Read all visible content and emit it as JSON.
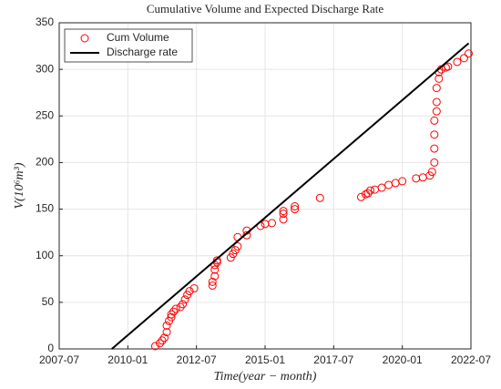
{
  "chart_data": {
    "type": "scatter",
    "title": "Cumulative Volume and Expected Discharge Rate",
    "xlabel": "Time(year − month)",
    "ylabel": "V(10⁶m³)",
    "xlim": [
      "2007-07",
      "2022-07"
    ],
    "xticks": [
      "2007-07",
      "2010-01",
      "2012-07",
      "2015-01",
      "2017-07",
      "2020-01",
      "2022-07"
    ],
    "ylim": [
      0,
      350
    ],
    "yticks": [
      0,
      50,
      100,
      150,
      200,
      250,
      300,
      350
    ],
    "grid": true,
    "legend": "upper left",
    "series": [
      {
        "name": "Cum Volume",
        "color": "#ff0000",
        "mode": "markers",
        "x": [
          "2011-01",
          "2011-03",
          "2011-04",
          "2011-05",
          "2011-06",
          "2011-06",
          "2011-07",
          "2011-08",
          "2011-08",
          "2011-09",
          "2011-10",
          "2011-12",
          "2012-01",
          "2012-02",
          "2012-03",
          "2012-04",
          "2012-06",
          "2013-02",
          "2013-02",
          "2013-03",
          "2013-03",
          "2013-03",
          "2013-04",
          "2013-04",
          "2013-10",
          "2013-11",
          "2013-12",
          "2014-01",
          "2014-01",
          "2014-05",
          "2014-05",
          "2014-11",
          "2015-01",
          "2015-04",
          "2015-09",
          "2015-09",
          "2015-09",
          "2016-02",
          "2016-02",
          "2017-01",
          "2018-07",
          "2018-09",
          "2018-10",
          "2018-11",
          "2019-01",
          "2019-04",
          "2019-07",
          "2019-10",
          "2020-01",
          "2020-07",
          "2020-10",
          "2021-01",
          "2021-02",
          "2021-03",
          "2021-03",
          "2021-03",
          "2021-03",
          "2021-04",
          "2021-04",
          "2021-04",
          "2021-05",
          "2021-05",
          "2021-06",
          "2021-08",
          "2021-09",
          "2022-01",
          "2022-04",
          "2022-06"
        ],
        "values": [
          3,
          6,
          9,
          12,
          18,
          25,
          30,
          34,
          37,
          40,
          43,
          45,
          48,
          53,
          58,
          62,
          65,
          68,
          72,
          78,
          85,
          90,
          93,
          95,
          98,
          102,
          106,
          110,
          120,
          122,
          127,
          132,
          134,
          135,
          139,
          145,
          148,
          150,
          153,
          162,
          163,
          166,
          167,
          170,
          171,
          173,
          176,
          178,
          180,
          183,
          184,
          186,
          190,
          200,
          215,
          230,
          245,
          255,
          265,
          280,
          290,
          297,
          300,
          302,
          303,
          308,
          312,
          317
        ]
      },
      {
        "name": "Discharge rate",
        "color": "#000000",
        "mode": "lines",
        "x": [
          "2009-06",
          "2022-06"
        ],
        "values": [
          0,
          328
        ]
      }
    ]
  }
}
